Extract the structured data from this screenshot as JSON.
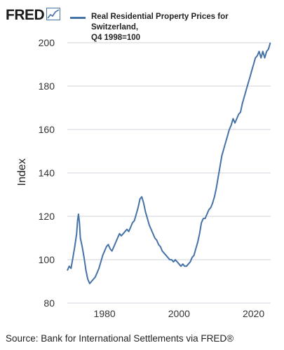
{
  "header": {
    "logo_text": "FRED",
    "logo_icon": "chart-trend-icon"
  },
  "source": "Source: Bank for International Settlements via FRED®",
  "colors": {
    "series": "#4572a7",
    "grid": "#cfd3d8",
    "panel": "#ffffff"
  },
  "chart_data": {
    "type": "line",
    "title": "",
    "xlabel": "",
    "ylabel": "Index",
    "xlim": [
      1970,
      2024.6
    ],
    "ylim": [
      80,
      200
    ],
    "yticks": [
      80,
      100,
      120,
      140,
      160,
      180,
      200
    ],
    "xticks": [
      1980,
      2000,
      2020
    ],
    "grid": "horizontal",
    "legend_position": "top",
    "series": [
      {
        "name": "Real Residential Property Prices for Switzerland, Q4 1998=100",
        "points": [
          [
            1970.0,
            95
          ],
          [
            1970.5,
            97
          ],
          [
            1971.0,
            96
          ],
          [
            1971.5,
            101
          ],
          [
            1972.0,
            106
          ],
          [
            1972.5,
            112
          ],
          [
            1972.75,
            118
          ],
          [
            1973.0,
            121
          ],
          [
            1973.25,
            117
          ],
          [
            1973.5,
            110
          ],
          [
            1974.0,
            106
          ],
          [
            1974.5,
            101
          ],
          [
            1975.0,
            95
          ],
          [
            1975.5,
            91
          ],
          [
            1976.0,
            89
          ],
          [
            1976.5,
            90
          ],
          [
            1977.0,
            91
          ],
          [
            1977.5,
            92
          ],
          [
            1978.0,
            94
          ],
          [
            1978.5,
            96
          ],
          [
            1979.0,
            99
          ],
          [
            1979.5,
            102
          ],
          [
            1980.0,
            104
          ],
          [
            1980.5,
            106
          ],
          [
            1981.0,
            107
          ],
          [
            1981.5,
            105
          ],
          [
            1982.0,
            104
          ],
          [
            1982.5,
            106
          ],
          [
            1983.0,
            108
          ],
          [
            1983.5,
            110
          ],
          [
            1984.0,
            112
          ],
          [
            1984.5,
            111
          ],
          [
            1985.0,
            112
          ],
          [
            1985.5,
            113
          ],
          [
            1986.0,
            114
          ],
          [
            1986.5,
            113
          ],
          [
            1987.0,
            115
          ],
          [
            1987.5,
            117
          ],
          [
            1988.0,
            118
          ],
          [
            1988.5,
            121
          ],
          [
            1989.0,
            124
          ],
          [
            1989.5,
            128
          ],
          [
            1990.0,
            129
          ],
          [
            1990.5,
            126
          ],
          [
            1991.0,
            122
          ],
          [
            1991.5,
            119
          ],
          [
            1992.0,
            116
          ],
          [
            1992.5,
            114
          ],
          [
            1993.0,
            112
          ],
          [
            1993.5,
            110
          ],
          [
            1994.0,
            109
          ],
          [
            1994.5,
            107
          ],
          [
            1995.0,
            106
          ],
          [
            1995.5,
            104
          ],
          [
            1996.0,
            103
          ],
          [
            1996.5,
            102
          ],
          [
            1997.0,
            101
          ],
          [
            1997.5,
            100
          ],
          [
            1998.0,
            100
          ],
          [
            1998.5,
            99
          ],
          [
            1999.0,
            100
          ],
          [
            1999.5,
            99
          ],
          [
            2000.0,
            98
          ],
          [
            2000.5,
            97
          ],
          [
            2001.0,
            98
          ],
          [
            2001.5,
            97
          ],
          [
            2002.0,
            97
          ],
          [
            2002.5,
            98
          ],
          [
            2003.0,
            99
          ],
          [
            2003.5,
            101
          ],
          [
            2004.0,
            102
          ],
          [
            2004.5,
            105
          ],
          [
            2005.0,
            108
          ],
          [
            2005.5,
            112
          ],
          [
            2006.0,
            117
          ],
          [
            2006.5,
            119
          ],
          [
            2007.0,
            119
          ],
          [
            2007.5,
            121
          ],
          [
            2008.0,
            123
          ],
          [
            2008.5,
            124
          ],
          [
            2009.0,
            126
          ],
          [
            2009.5,
            129
          ],
          [
            2010.0,
            133
          ],
          [
            2010.5,
            138
          ],
          [
            2011.0,
            143
          ],
          [
            2011.5,
            148
          ],
          [
            2012.0,
            151
          ],
          [
            2012.5,
            154
          ],
          [
            2013.0,
            157
          ],
          [
            2013.5,
            160
          ],
          [
            2014.0,
            162
          ],
          [
            2014.5,
            165
          ],
          [
            2015.0,
            163
          ],
          [
            2015.5,
            165
          ],
          [
            2016.0,
            167
          ],
          [
            2016.5,
            168
          ],
          [
            2017.0,
            172
          ],
          [
            2017.5,
            175
          ],
          [
            2018.0,
            178
          ],
          [
            2018.5,
            181
          ],
          [
            2019.0,
            184
          ],
          [
            2019.5,
            187
          ],
          [
            2020.0,
            190
          ],
          [
            2020.5,
            193
          ],
          [
            2021.0,
            194
          ],
          [
            2021.5,
            196
          ],
          [
            2022.0,
            193
          ],
          [
            2022.5,
            196
          ],
          [
            2023.0,
            193
          ],
          [
            2023.5,
            196
          ],
          [
            2024.0,
            197
          ],
          [
            2024.5,
            200
          ]
        ]
      }
    ]
  }
}
